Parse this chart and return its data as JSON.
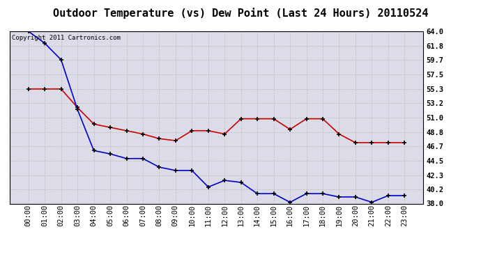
{
  "title": "Outdoor Temperature (vs) Dew Point (Last 24 Hours) 20110524",
  "copyright_text": "Copyright 2011 Cartronics.com",
  "x_labels": [
    "00:00",
    "01:00",
    "02:00",
    "03:00",
    "04:00",
    "05:00",
    "06:00",
    "07:00",
    "08:00",
    "09:00",
    "10:00",
    "11:00",
    "12:00",
    "13:00",
    "14:00",
    "15:00",
    "16:00",
    "17:00",
    "18:00",
    "19:00",
    "20:00",
    "21:00",
    "22:00",
    "23:00"
  ],
  "temp_data": [
    64.0,
    62.2,
    59.7,
    52.2,
    46.0,
    45.5,
    44.8,
    44.8,
    43.5,
    43.0,
    43.0,
    40.5,
    41.5,
    41.2,
    39.5,
    39.5,
    38.2,
    39.5,
    39.5,
    39.0,
    39.0,
    38.2,
    39.2,
    39.2
  ],
  "dew_data": [
    55.3,
    55.3,
    55.3,
    52.5,
    50.0,
    49.5,
    49.0,
    48.5,
    47.8,
    47.5,
    49.0,
    49.0,
    48.5,
    50.8,
    50.8,
    50.8,
    49.2,
    50.8,
    50.8,
    48.5,
    47.2,
    47.2,
    47.2,
    47.2
  ],
  "temp_color": "#0000cc",
  "dew_color": "#cc0000",
  "bg_color": "#ffffff",
  "plot_bg_color": "#dcdce8",
  "grid_color": "#bbbbbb",
  "ylim_min": 38.0,
  "ylim_max": 64.0,
  "yticks": [
    38.0,
    40.2,
    42.3,
    44.5,
    46.7,
    48.8,
    51.0,
    53.2,
    55.3,
    57.5,
    59.7,
    61.8,
    64.0
  ],
  "title_fontsize": 11,
  "copyright_fontsize": 6.5,
  "tick_fontsize": 7.5,
  "marker_color": "#000000"
}
